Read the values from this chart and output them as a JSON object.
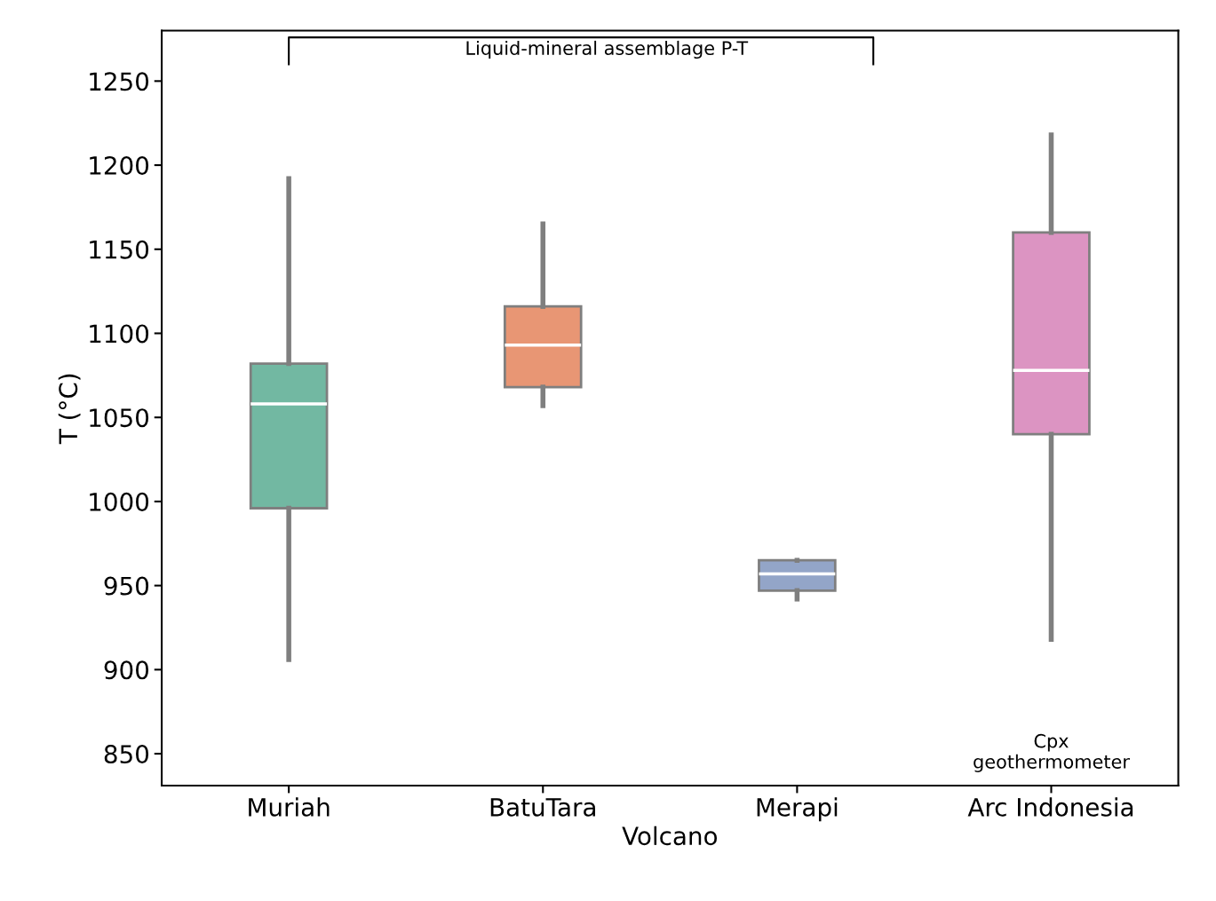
{
  "chart_data": {
    "type": "box",
    "xlabel": "Volcano",
    "ylabel": "T (°C)",
    "categories": [
      "Muriah",
      "BatuTara",
      "Merapi",
      "Arc Indonesia"
    ],
    "colors": [
      "#72b8a2",
      "#e89674",
      "#93a5c8",
      "#dc94c2"
    ],
    "boxes": [
      {
        "low": 906,
        "q1": 996,
        "median": 1058,
        "q3": 1082,
        "high": 1192
      },
      {
        "low": 1057,
        "q1": 1068,
        "median": 1093,
        "q3": 1116,
        "high": 1165
      },
      {
        "low": 942,
        "q1": 947,
        "median": 957,
        "q3": 965,
        "high": 965
      },
      {
        "low": 918,
        "q1": 1040,
        "median": 1078,
        "q3": 1160,
        "high": 1218
      }
    ],
    "ylim": [
      831,
      1280
    ],
    "yticks": [
      850,
      900,
      950,
      1000,
      1050,
      1100,
      1150,
      1200,
      1250
    ],
    "grid": false,
    "annotations": [
      "Liquid-mineral assemblage P-T",
      "Cpx\ngeothermometer"
    ]
  }
}
